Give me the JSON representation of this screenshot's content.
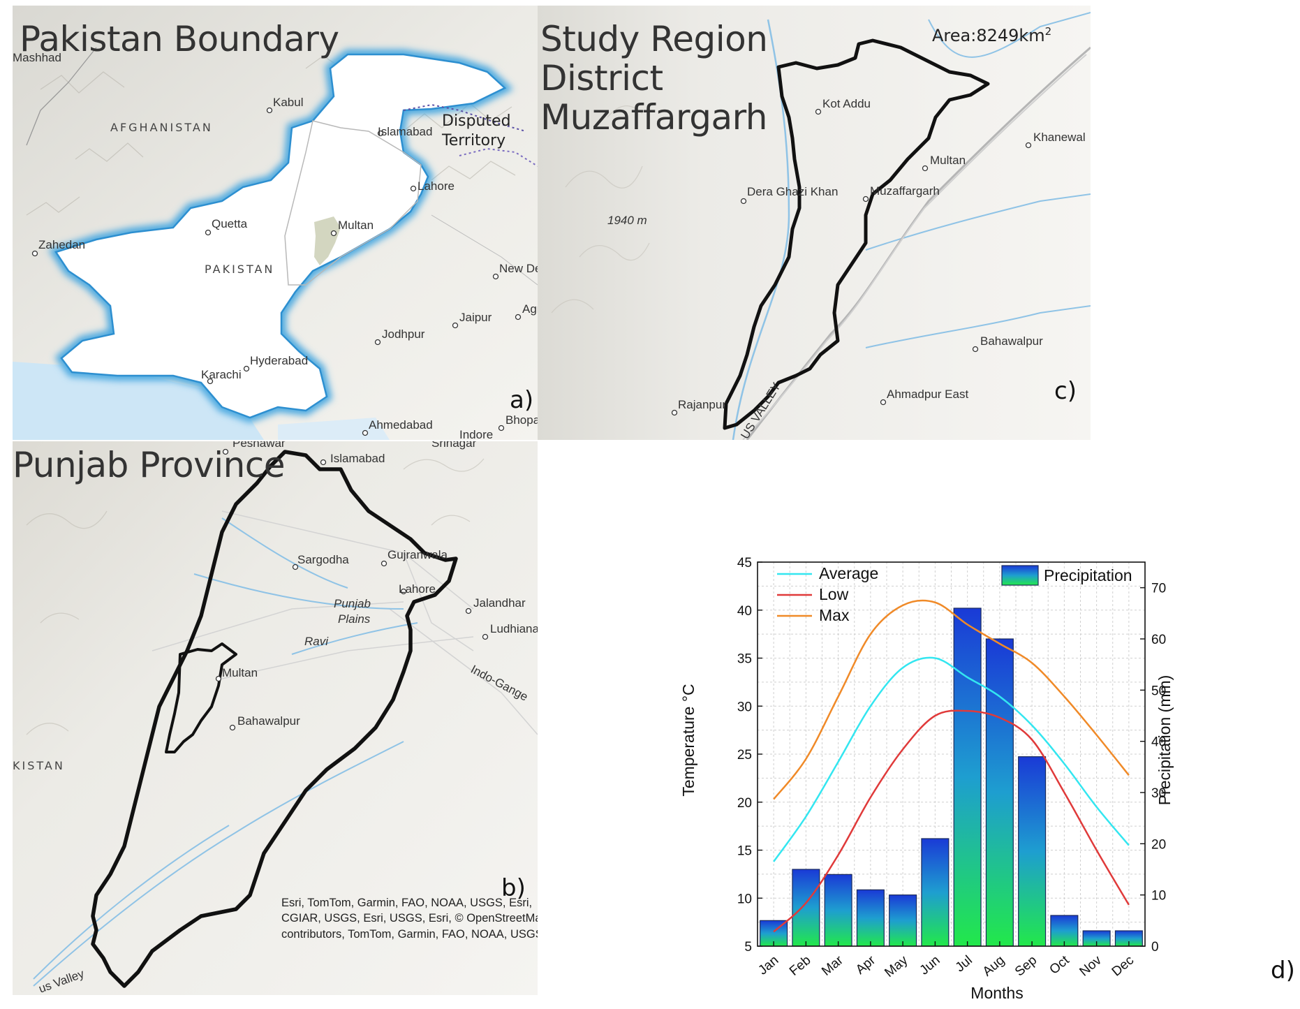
{
  "panel_a": {
    "title": "Pakistan Boundary",
    "letter": "a)",
    "cities": [
      "Mashhad",
      "Kabul",
      "Islamabad",
      "Lahore",
      "Quetta",
      "Zahedan",
      "Multan",
      "Hyderabad",
      "Karachi",
      "New Del",
      "Jaipur",
      "Jodhpur",
      "Agr",
      "Ahmedabad",
      "Indore",
      "Bhopal"
    ],
    "countries": [
      "AFGHANISTAN",
      "PAKISTAN"
    ],
    "disputed_label_1": "Disputed",
    "disputed_label_2": "Territory",
    "colors": {
      "boundary_glow": "#4aa8e0",
      "sea": "#cde6f6",
      "highlight": "#d3d6c0"
    }
  },
  "panel_b": {
    "title": "Punjab Province",
    "letter": "b)",
    "cities": [
      "Peshawar",
      "Islamabad",
      "Srinagar",
      "Sargodha",
      "Gujranwala",
      "Lahore",
      "Jalandhar",
      "Ludhiana",
      "Multan",
      "Bahawalpur"
    ],
    "labels": {
      "plains_1": "Punjab",
      "plains_2": "Plains",
      "river": "Ravi",
      "ganges": "Indo-Gange",
      "country": "KISTAN",
      "valley": "us Valley"
    },
    "attribution": "Esri, TomTom, Garmin, FAO, NOAA, USGS, Esri, CGIAR, USGS, Esri, USGS, Esri, © OpenStreetMap contributors, TomTom, Garmin, FAO, NOAA, USGS"
  },
  "panel_c": {
    "title_1": "Study Region",
    "title_2": "District",
    "title_3": "Muzaffargarh",
    "area_text": "Area:8249km",
    "area_sup": "2",
    "letter": "c)",
    "cities": [
      "Kot Addu",
      "Khanewal",
      "Multan",
      "Dera Ghazi Khan",
      "Muzaffargarh",
      "Bahawalpur",
      "Rajanpur",
      "Ahmadpur East"
    ],
    "elevation": "1940 m",
    "valley_label": "US VALLEY"
  },
  "panel_d": {
    "letter": "d)",
    "chart_data": {
      "type": "bar",
      "xlabel": "Months",
      "ylabel": "Temperature °C",
      "y2label": "Precipitation (mm)",
      "categories": [
        "Jan",
        "Feb",
        "Mar",
        "Apr",
        "May",
        "Jun",
        "Jul",
        "Aug",
        "Sep",
        "Oct",
        "Nov",
        "Dec"
      ],
      "ylim": [
        5,
        45
      ],
      "y2lim": [
        0,
        75
      ],
      "yticks": [
        5,
        10,
        15,
        20,
        25,
        30,
        35,
        40,
        45
      ],
      "y2ticks": [
        0,
        10,
        20,
        30,
        40,
        50,
        60,
        70
      ],
      "grid": true,
      "legend_placement": "top",
      "bars": {
        "name": "Precipitation",
        "values": [
          5,
          15,
          14,
          11,
          10,
          21,
          66,
          60,
          37,
          6,
          3,
          3
        ]
      },
      "series": [
        {
          "name": "Average",
          "color": "#33e6f0",
          "values": [
            13.8,
            18.5,
            24.2,
            30.0,
            34.0,
            35.0,
            33.0,
            31.0,
            28.0,
            24.0,
            19.5,
            15.5
          ]
        },
        {
          "name": "Low",
          "color": "#e03a3a",
          "values": [
            6.5,
            9.5,
            14.5,
            20.5,
            25.5,
            29.0,
            29.5,
            28.8,
            26.5,
            21.0,
            15.0,
            9.3
          ]
        },
        {
          "name": "Max",
          "color": "#f08a28",
          "values": [
            20.3,
            24.5,
            31.0,
            37.5,
            40.5,
            40.8,
            38.5,
            36.5,
            34.5,
            31.0,
            27.0,
            22.8
          ]
        }
      ]
    }
  }
}
